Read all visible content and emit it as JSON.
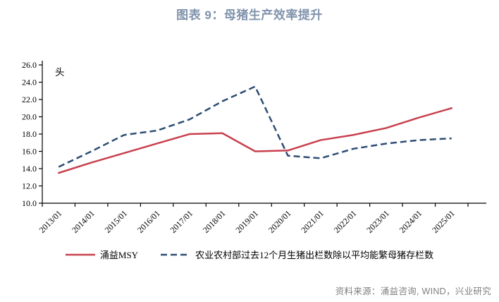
{
  "title": "图表 9：母猪生产效率提升",
  "unit_label": "头",
  "source": "资料来源：涌益咨询, WIND，兴业研究",
  "colors": {
    "title": "#8093AC",
    "source_text": "#7F7F7F",
    "axis": "#000000",
    "red_series": "#C8414F",
    "navy_series": "#2E4D74"
  },
  "chart_data": {
    "type": "line",
    "title": "图表 9：母猪生产效率提升",
    "xlabel": "",
    "ylabel": "头",
    "ylim": [
      10.0,
      26.0
    ],
    "ytick_step": 2.0,
    "ytick_labels": [
      "10.0",
      "12.0",
      "14.0",
      "16.0",
      "18.0",
      "20.0",
      "22.0",
      "24.0",
      "26.0"
    ],
    "grid": false,
    "legend_position": "bottom",
    "categories": [
      "2013/01",
      "2014/01",
      "2015/01",
      "2016/01",
      "2017/01",
      "2018/01",
      "2019/01",
      "2020/01",
      "2021/01",
      "2022/01",
      "2023/01",
      "2024/01",
      "2025/01"
    ],
    "series": [
      {
        "name": "涌益MSY",
        "style": "solid",
        "color": "#C8414F",
        "values": [
          13.5,
          14.7,
          15.8,
          16.9,
          18.0,
          18.1,
          16.0,
          16.1,
          17.3,
          17.9,
          18.7,
          19.9,
          21.0
        ]
      },
      {
        "name": "农业农村部过去12个月生猪出栏数除以平均能繁母猪存栏数",
        "style": "dashed",
        "color": "#2E4D74",
        "values": [
          14.2,
          16.0,
          17.9,
          18.4,
          19.7,
          21.8,
          23.5,
          15.5,
          15.2,
          16.3,
          16.9,
          17.3,
          17.5
        ]
      }
    ]
  }
}
